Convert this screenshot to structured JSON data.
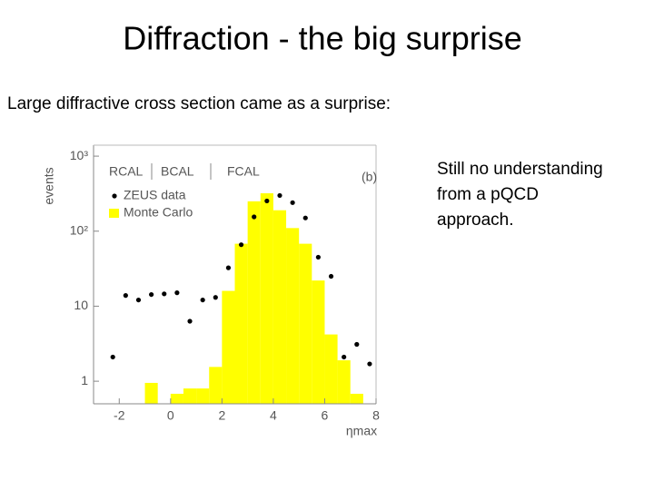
{
  "title": "Diffraction - the big surprise",
  "subtitle": "Large diffractive cross section came as a surprise:",
  "side_text": [
    "Still no understanding",
    "from a pQCD",
    "approach."
  ],
  "chart_data": {
    "type": "histogram",
    "y_label": "events",
    "x_label": "ηmax",
    "annotations": [
      "RCAL",
      "BCAL",
      "FCAL",
      "(b)"
    ],
    "log_y": true,
    "xlim": [
      -3,
      8
    ],
    "ylim": [
      0.5,
      1400
    ],
    "xticks": [
      -2,
      0,
      2,
      4,
      6,
      8
    ],
    "yticks": [
      1,
      10,
      {
        "value": 100,
        "label": "10²"
      },
      {
        "value": 1000,
        "label": "10³"
      }
    ],
    "bins": [
      -1,
      -0.5,
      0,
      0.5,
      1,
      1.5,
      2,
      2.5,
      3,
      3.5,
      4,
      4.5,
      5,
      5.5,
      6,
      6.5,
      7,
      7.5
    ],
    "series": [
      {
        "name": "ZEUS data",
        "type": "scatter",
        "color": "#000000",
        "x": [
          -2.25,
          -1.75,
          -1.25,
          -0.75,
          -0.25,
          0.25,
          0.75,
          1.25,
          1.75,
          2.25,
          2.75,
          3.25,
          3.75,
          4.25,
          4.75,
          5.25,
          5.75,
          6.25,
          6.75,
          7.25,
          7.75
        ],
        "values": [
          2.1,
          13.9,
          12.1,
          14.3,
          14.6,
          15.1,
          6.3,
          12.1,
          13.1,
          32.5,
          66,
          155,
          253,
          299,
          240,
          150,
          45,
          25,
          2.1,
          3.1,
          1.7
        ]
      },
      {
        "name": "Monte Carlo",
        "type": "histogram",
        "color": "#ffff00",
        "values": [
          0.95,
          null,
          0.68,
          0.8,
          0.8,
          1.55,
          16,
          68,
          250,
          320,
          190,
          110,
          68,
          22,
          4.2,
          1.9,
          0.68
        ]
      }
    ]
  }
}
